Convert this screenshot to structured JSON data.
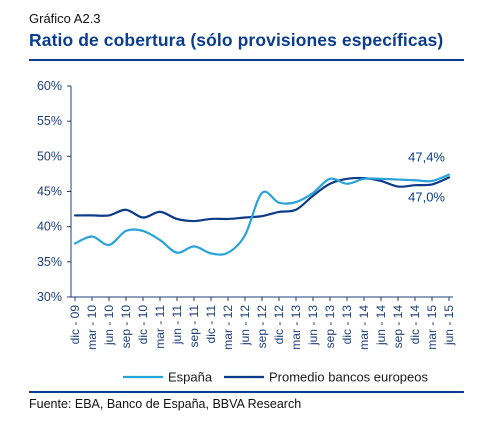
{
  "header": {
    "label": "Gráfico A2.3",
    "title": "Ratio de cobertura (sólo provisiones específicas)"
  },
  "footer": {
    "source": "Fuente: EBA, Banco de España, BBVA Research"
  },
  "colors": {
    "spain": "#2aa3d9",
    "europe": "#0d3b8a",
    "axis": "#1f3f7a",
    "title": "#0a3d8f"
  },
  "chart_data": {
    "type": "line",
    "ylim": [
      30,
      60
    ],
    "yticks": [
      30,
      35,
      40,
      45,
      50,
      55,
      60
    ],
    "ytick_labels": [
      "30%",
      "35%",
      "40%",
      "45%",
      "50%",
      "55%",
      "60%"
    ],
    "grid": false,
    "legend_position": "bottom",
    "categories": [
      "dic - 09",
      "mar - 10",
      "jun - 10",
      "sep - 10",
      "dic - 10",
      "mar - 11",
      "jun - 11",
      "sep - 11",
      "dic - 11",
      "mar - 12",
      "jun - 12",
      "sep - 12",
      "dic - 12",
      "mar - 13",
      "jun - 13",
      "sep - 13",
      "dic - 13",
      "mar - 14",
      "jun - 14",
      "sep - 14",
      "dic - 14",
      "mar - 15",
      "jun - 15"
    ],
    "series": [
      {
        "name": "España",
        "color": "#2aa3d9",
        "values": [
          37.6,
          38.6,
          37.4,
          39.4,
          39.4,
          38.1,
          36.3,
          37.2,
          36.2,
          36.3,
          38.8,
          44.8,
          43.4,
          43.5,
          44.8,
          46.8,
          46.1,
          46.8,
          46.8,
          46.7,
          46.6,
          46.5,
          47.4
        ]
      },
      {
        "name": "Promedio bancos europeos",
        "color": "#0d3b8a",
        "values": [
          41.6,
          41.6,
          41.6,
          42.4,
          41.3,
          42.1,
          41.1,
          40.8,
          41.1,
          41.1,
          41.3,
          41.5,
          42.1,
          42.4,
          44.4,
          46.1,
          46.8,
          46.9,
          46.5,
          45.7,
          45.9,
          46.0,
          47.0
        ]
      }
    ],
    "annotations": [
      {
        "text": "47,4%",
        "series": "España"
      },
      {
        "text": "47,0%",
        "series": "Promedio bancos europeos"
      }
    ]
  }
}
